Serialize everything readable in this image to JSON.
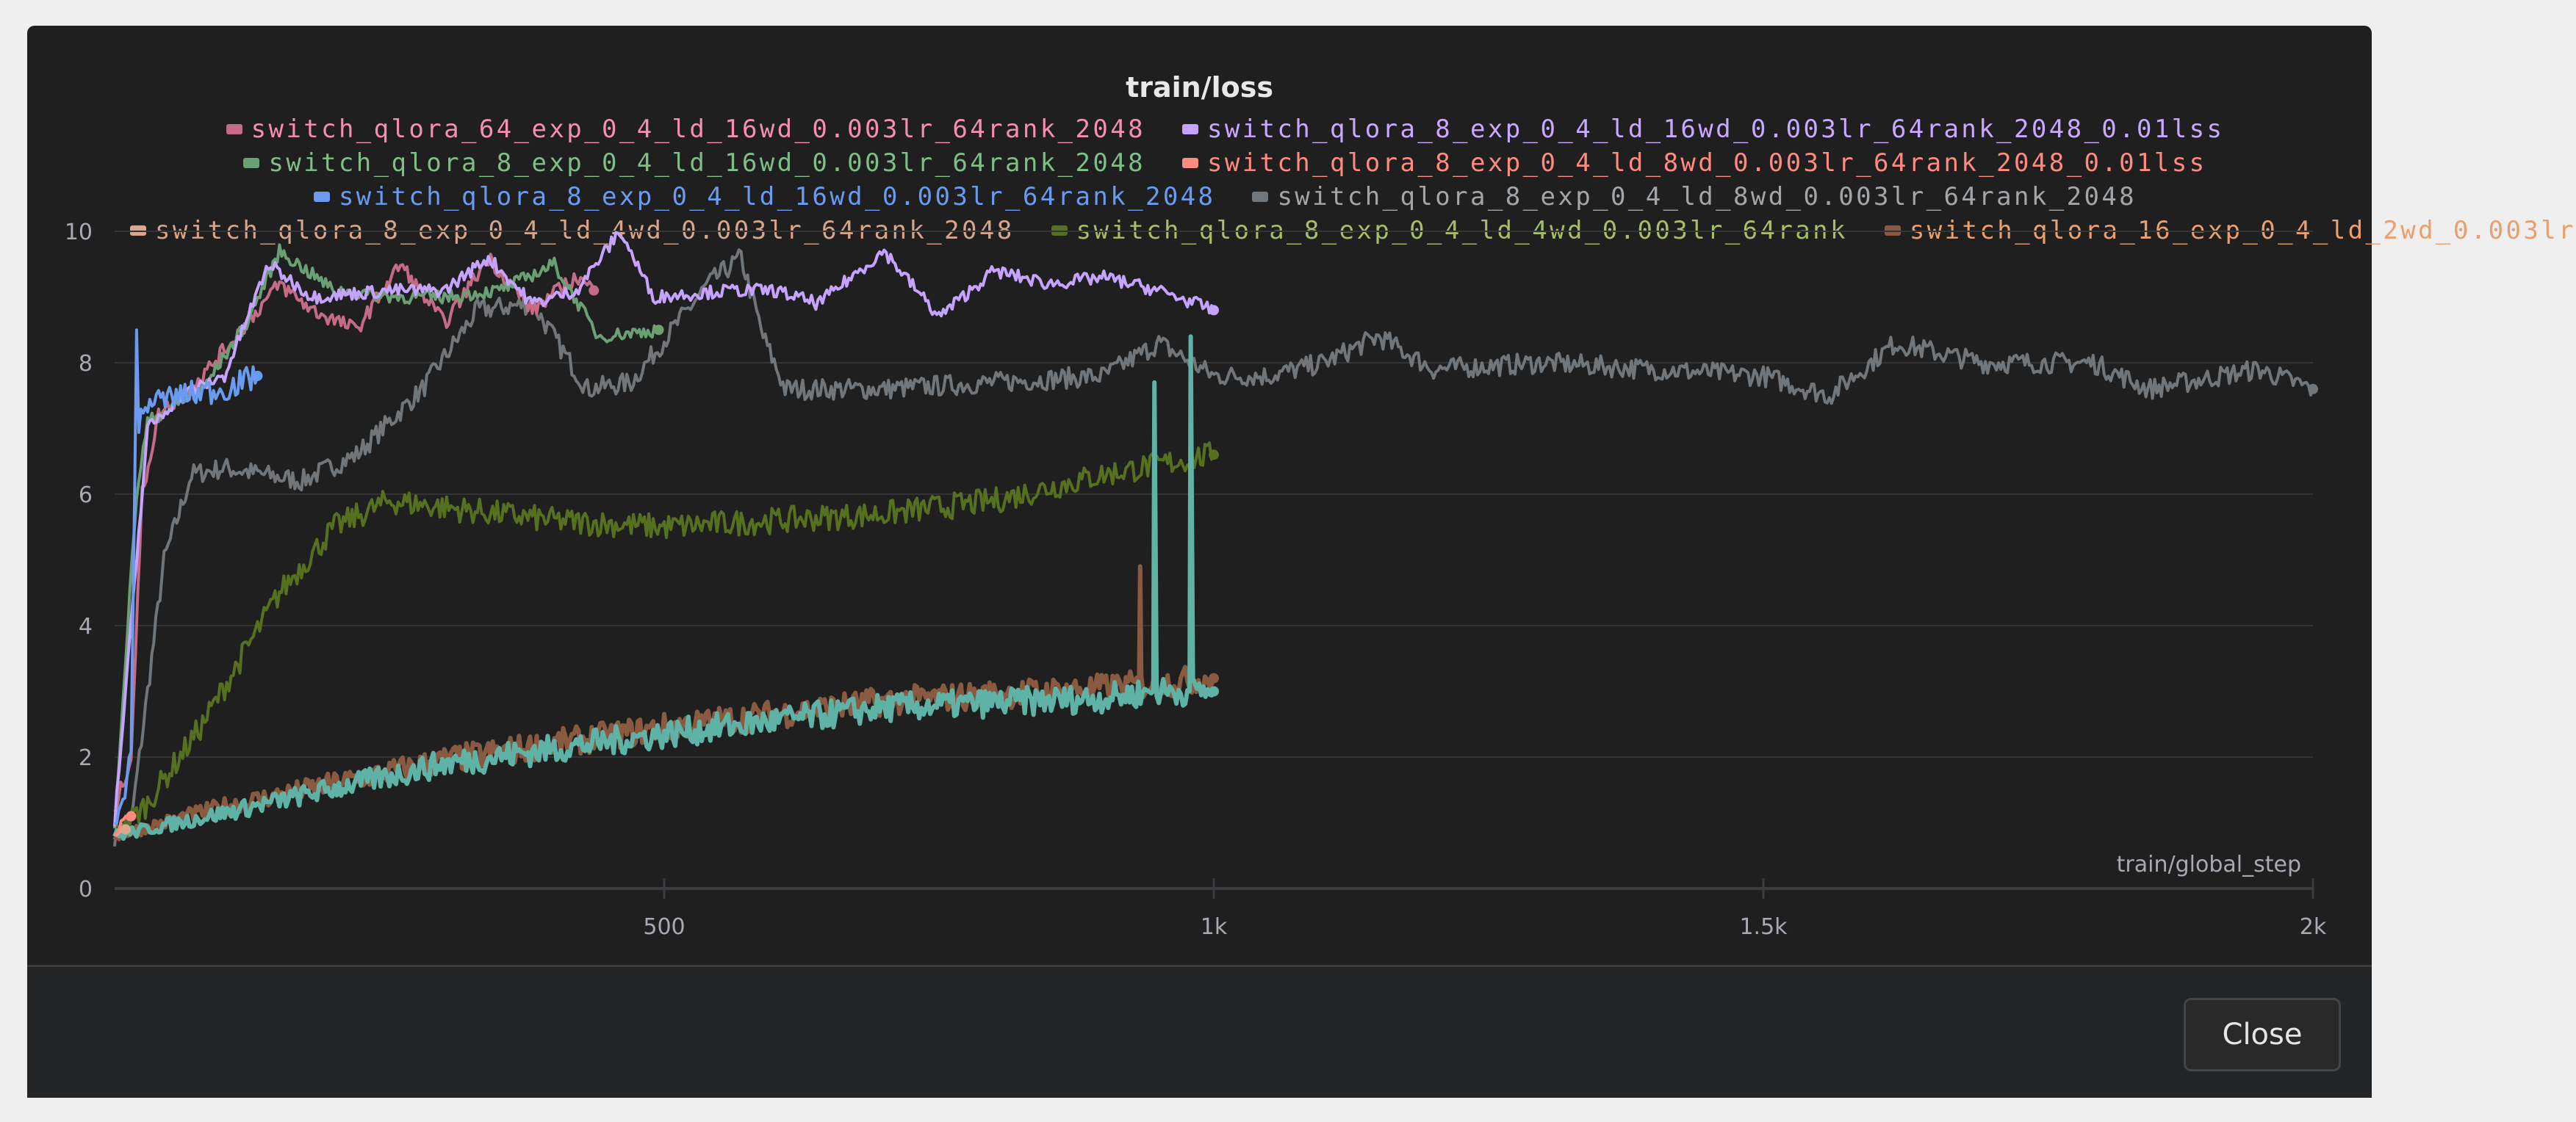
{
  "modal": {
    "close_label": "Close"
  },
  "chart_data": {
    "type": "line",
    "title": "train/loss",
    "xlabel": "train/global_step",
    "ylabel": "",
    "xlim": [
      0,
      2000
    ],
    "ylim": [
      0,
      10
    ],
    "x_ticks": [
      {
        "v": 500,
        "label": "500"
      },
      {
        "v": 1000,
        "label": "1k"
      },
      {
        "v": 1500,
        "label": "1.5k"
      },
      {
        "v": 2000,
        "label": "2k"
      }
    ],
    "y_ticks": [
      {
        "v": 0,
        "label": "0"
      },
      {
        "v": 2,
        "label": "2"
      },
      {
        "v": 4,
        "label": "4"
      },
      {
        "v": 6,
        "label": "6"
      },
      {
        "v": 8,
        "label": "8"
      },
      {
        "v": 10,
        "label": "10"
      }
    ],
    "grid": true,
    "legend_placement": "top",
    "series": [
      {
        "name": "switch_qlora_8_exp_0_4_ld_8wd_0.003lr_64rank_2048",
        "color": "#70767a",
        "text_color": "#a2a6a9",
        "row": 2,
        "points": [
          [
            0,
            0.8
          ],
          [
            15,
            1
          ],
          [
            30,
            3
          ],
          [
            45,
            5
          ],
          [
            70,
            6.3
          ],
          [
            100,
            6.4
          ],
          [
            170,
            6.2
          ],
          [
            220,
            6.6
          ],
          [
            280,
            7.6
          ],
          [
            330,
            8.8
          ],
          [
            380,
            8.9
          ],
          [
            430,
            7.6
          ],
          [
            470,
            7.7
          ],
          [
            540,
            9.2
          ],
          [
            570,
            9.6
          ],
          [
            590,
            8.4
          ],
          [
            610,
            7.6
          ],
          [
            700,
            7.6
          ],
          [
            800,
            7.7
          ],
          [
            900,
            7.8
          ],
          [
            950,
            8.3
          ],
          [
            1000,
            7.8
          ],
          [
            1050,
            7.8
          ],
          [
            1100,
            8.0
          ],
          [
            1150,
            8.4
          ],
          [
            1200,
            7.9
          ],
          [
            1300,
            8.0
          ],
          [
            1400,
            7.9
          ],
          [
            1500,
            7.8
          ],
          [
            1560,
            7.5
          ],
          [
            1620,
            8.3
          ],
          [
            1700,
            8.0
          ],
          [
            1800,
            8.0
          ],
          [
            1850,
            7.6
          ],
          [
            1950,
            7.9
          ],
          [
            2000,
            7.6
          ]
        ]
      },
      {
        "name": "switch_qlora_8_exp_0_4_ld_4wd_0.003lr_64rank",
        "color": "#55701f",
        "text_color": "#a7bd6a",
        "row": 3,
        "points": [
          [
            0,
            0.8
          ],
          [
            30,
            1.3
          ],
          [
            80,
            2.5
          ],
          [
            150,
            4.5
          ],
          [
            200,
            5.5
          ],
          [
            250,
            5.9
          ],
          [
            300,
            5.8
          ],
          [
            400,
            5.6
          ],
          [
            500,
            5.5
          ],
          [
            600,
            5.6
          ],
          [
            700,
            5.7
          ],
          [
            800,
            5.9
          ],
          [
            900,
            6.3
          ],
          [
            1000,
            6.6
          ]
        ]
      },
      {
        "name": "switch_qlora_16_exp_0_4_ld_2wd_0.003lr",
        "color": "#8a5a40",
        "text_color": "#e8a070",
        "row": 3,
        "points": [
          [
            0,
            0.8
          ],
          [
            100,
            1.25
          ],
          [
            300,
            1.95
          ],
          [
            500,
            2.45
          ],
          [
            700,
            2.85
          ],
          [
            900,
            3.05
          ],
          [
            932,
            3.1
          ],
          [
            933,
            4.9
          ],
          [
            934,
            3.1
          ],
          [
            1000,
            3.2
          ]
        ]
      },
      {
        "name": "",
        "color": "#5fb3a6",
        "text_color": "#5fb3a6",
        "row": -1,
        "points": [
          [
            0,
            0.8
          ],
          [
            100,
            1.15
          ],
          [
            300,
            1.9
          ],
          [
            500,
            2.35
          ],
          [
            700,
            2.75
          ],
          [
            900,
            2.9
          ],
          [
            945,
            3.0
          ],
          [
            946,
            7.7
          ],
          [
            948,
            3.0
          ],
          [
            978,
            3.0
          ],
          [
            979,
            8.4
          ],
          [
            981,
            3.0
          ],
          [
            1000,
            3.0
          ]
        ]
      },
      {
        "name": "switch_qlora_8_exp_0_4_ld_4wd_0.003lr_64rank_2048",
        "color": "#d9a88f",
        "text_color": "#d6a58c",
        "row": 3,
        "points": [
          [
            0,
            0.8
          ],
          [
            10,
            0.9
          ]
        ]
      },
      {
        "name": "switch_qlora_64_exp_0_4_ld_16wd_0.003lr_64rank_2048",
        "color": "#c46b86",
        "text_color": "#f48fb1",
        "row": 0,
        "points": [
          [
            0,
            1.2
          ],
          [
            15,
            2
          ],
          [
            25,
            6
          ],
          [
            40,
            7.2
          ],
          [
            80,
            7.8
          ],
          [
            120,
            8.6
          ],
          [
            150,
            9.2
          ],
          [
            180,
            8.8
          ],
          [
            220,
            8.5
          ],
          [
            260,
            9.5
          ],
          [
            300,
            8.6
          ],
          [
            340,
            9.6
          ],
          [
            380,
            8.8
          ],
          [
            420,
            9.3
          ],
          [
            436,
            9.1
          ]
        ]
      },
      {
        "name": "switch_qlora_8_exp_0_4_ld_16wd_0.003lr_64rank_2048",
        "color": "#6aa073",
        "text_color": "#7fbf87",
        "row": 1,
        "points": [
          [
            0,
            1
          ],
          [
            20,
            6
          ],
          [
            30,
            7.1
          ],
          [
            80,
            7.6
          ],
          [
            120,
            8.6
          ],
          [
            150,
            9.7
          ],
          [
            200,
            9.1
          ],
          [
            260,
            9.0
          ],
          [
            300,
            9.0
          ],
          [
            350,
            9.1
          ],
          [
            400,
            9.5
          ],
          [
            440,
            8.4
          ],
          [
            495,
            8.5
          ]
        ]
      },
      {
        "name": "switch_qlora_8_exp_0_4_ld_16wd_0.003lr_64rank_2048_0.01lss",
        "color": "#c5a3ff",
        "text_color": "#c9a8ff",
        "row": 0,
        "points": [
          [
            0,
            1
          ],
          [
            20,
            5
          ],
          [
            30,
            7
          ],
          [
            60,
            7.5
          ],
          [
            100,
            7.8
          ],
          [
            140,
            9.5
          ],
          [
            180,
            9.0
          ],
          [
            250,
            9.1
          ],
          [
            300,
            9.1
          ],
          [
            340,
            9.6
          ],
          [
            380,
            8.9
          ],
          [
            420,
            9.1
          ],
          [
            460,
            10
          ],
          [
            490,
            9.0
          ],
          [
            560,
            9.1
          ],
          [
            600,
            9.1
          ],
          [
            640,
            8.9
          ],
          [
            700,
            9.7
          ],
          [
            750,
            8.7
          ],
          [
            800,
            9.4
          ],
          [
            850,
            9.2
          ],
          [
            900,
            9.3
          ],
          [
            950,
            9.1
          ],
          [
            1000,
            8.8
          ]
        ]
      },
      {
        "name": "switch_qlora_8_exp_0_4_ld_8wd_0.003lr_64rank_2048_0.01lss",
        "color": "#ff8a80",
        "text_color": "#ff8a80",
        "row": 1,
        "points": [
          [
            0,
            0.8
          ],
          [
            10,
            1.1
          ],
          [
            15,
            1.1
          ]
        ]
      },
      {
        "name": "switch_qlora_8_exp_0_4_ld_16wd_0.003lr_64rank_2048",
        "color": "#6b9bf0",
        "text_color": "#6b9bf0",
        "row": 2,
        "points": [
          [
            0,
            0.8
          ],
          [
            15,
            2
          ],
          [
            20,
            8.5
          ],
          [
            22,
            7
          ],
          [
            30,
            7.4
          ],
          [
            60,
            7.5
          ],
          [
            100,
            7.6
          ],
          [
            130,
            7.8
          ]
        ]
      }
    ]
  }
}
